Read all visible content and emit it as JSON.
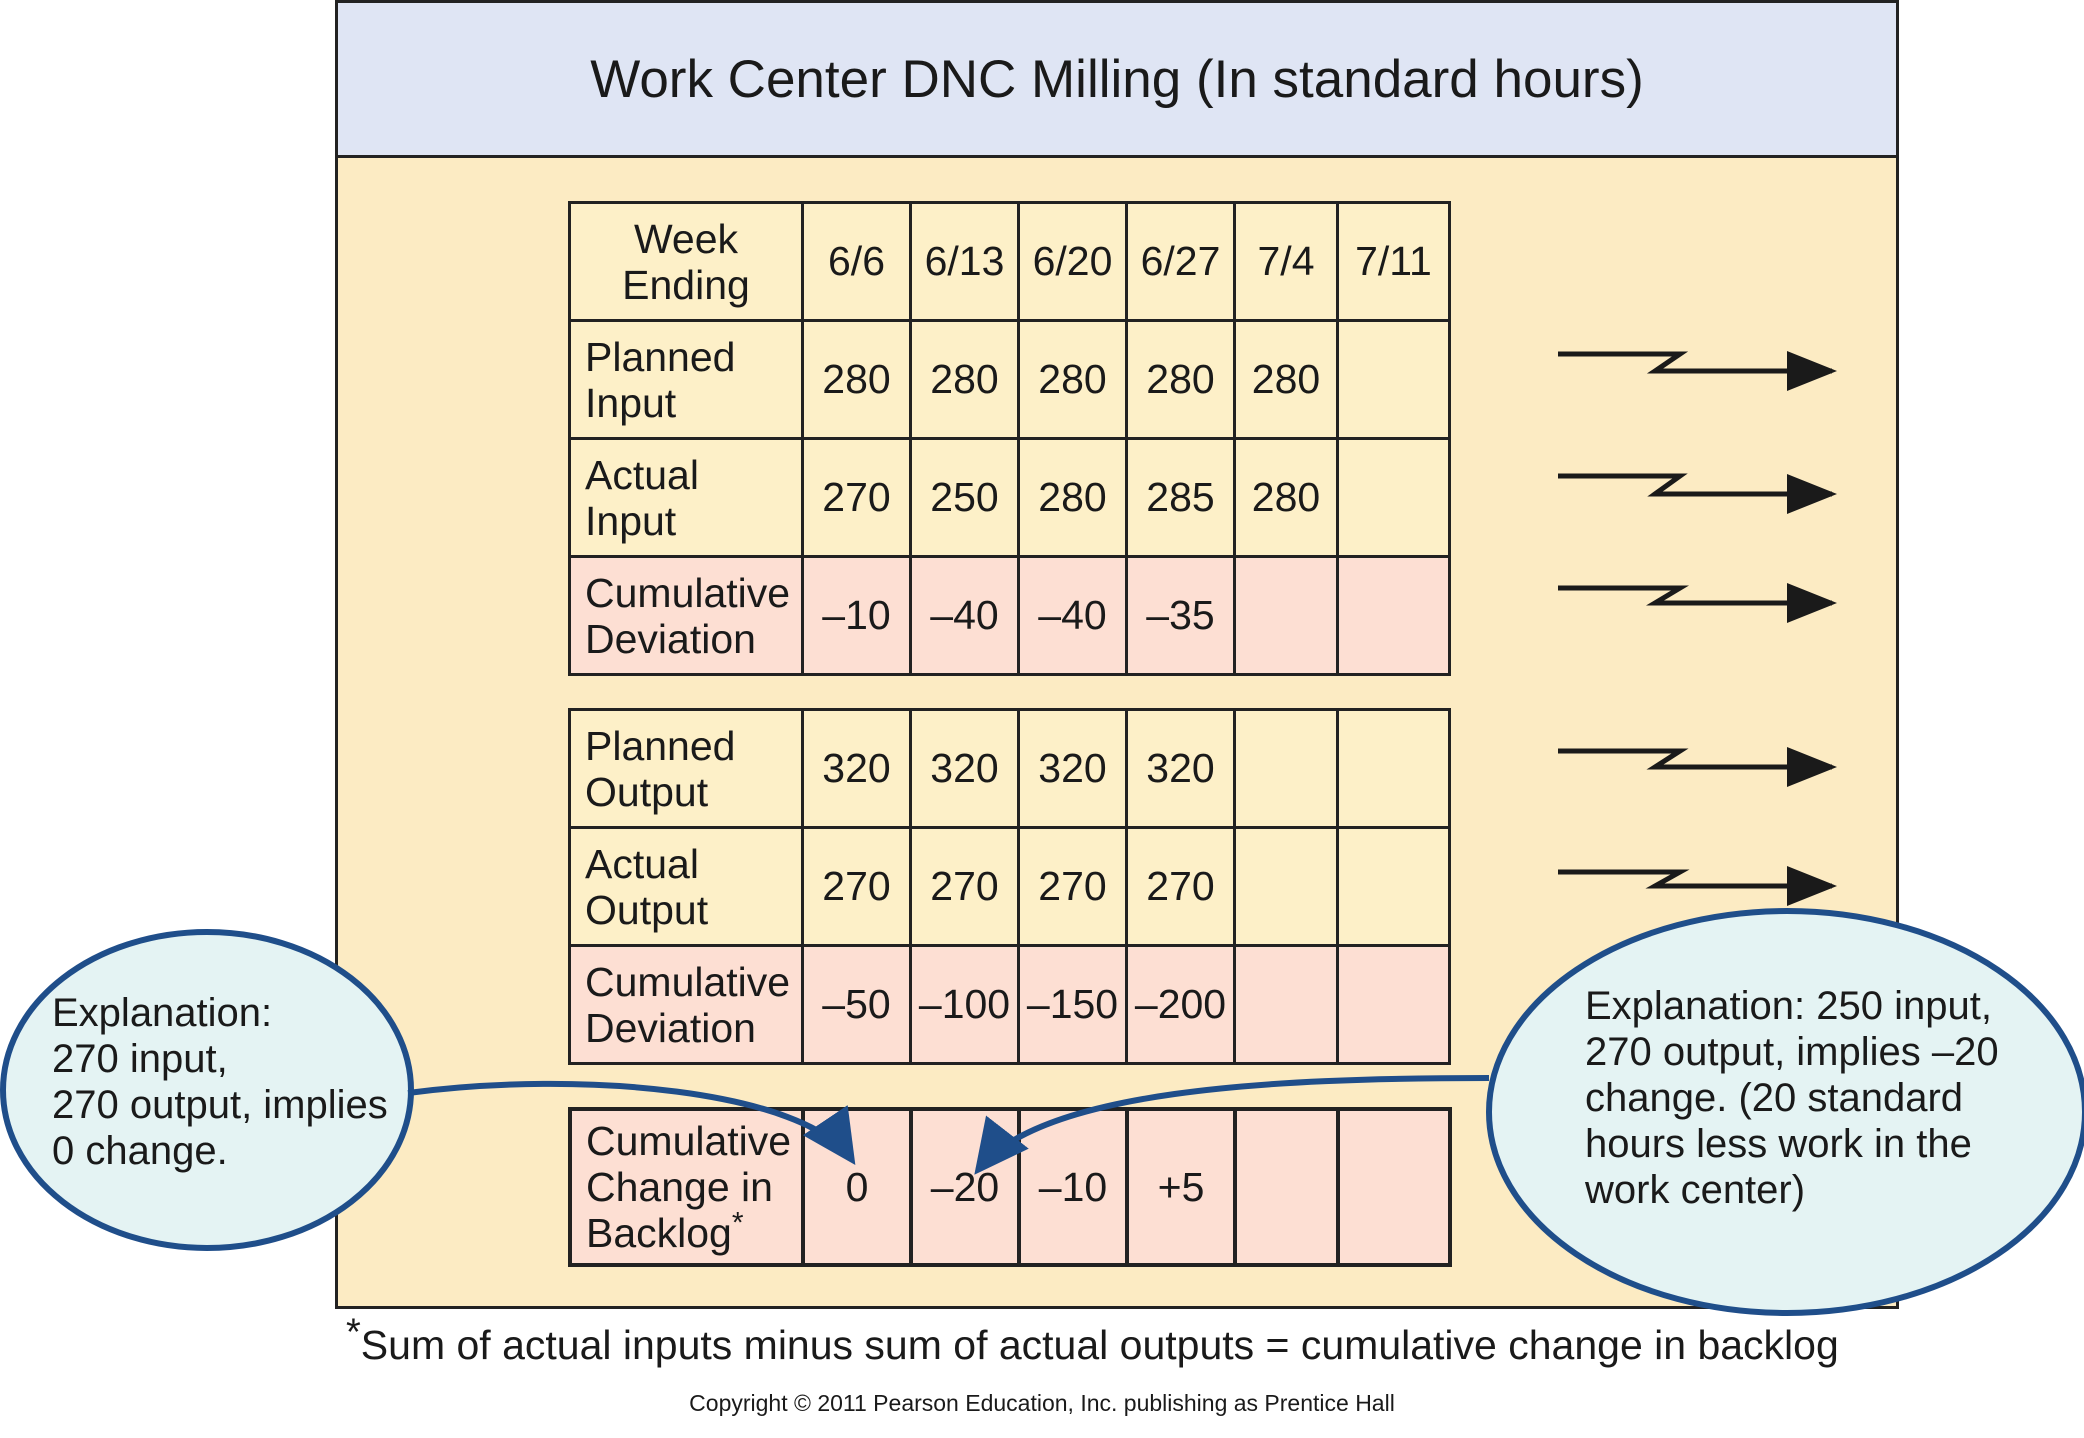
{
  "title": "Work Center DNC Milling (In standard hours)",
  "table": {
    "week_label": "Week Ending",
    "weeks": [
      "6/6",
      "6/13",
      "6/20",
      "6/27",
      "7/4",
      "7/11"
    ],
    "input_rows": [
      {
        "label": "Planned Input",
        "values": [
          "280",
          "280",
          "280",
          "280",
          "280",
          ""
        ]
      },
      {
        "label": "Actual Input",
        "values": [
          "270",
          "250",
          "280",
          "285",
          "280",
          ""
        ]
      },
      {
        "label": "Cumulative Deviation",
        "values": [
          "–10",
          "–40",
          "–40",
          "–35",
          "",
          ""
        ]
      }
    ],
    "output_rows": [
      {
        "label": "Planned Output",
        "values": [
          "320",
          "320",
          "320",
          "320",
          "",
          ""
        ]
      },
      {
        "label": "Actual Output",
        "values": [
          "270",
          "270",
          "270",
          "270",
          "",
          ""
        ]
      },
      {
        "label": "Cumulative Deviation",
        "values": [
          "–50",
          "–100",
          "–150",
          "–200",
          "",
          ""
        ]
      }
    ],
    "backlog_row": {
      "label": "Cumulative Change in Backlog",
      "label_mark": "*",
      "values": [
        "0",
        "–20",
        "–10",
        "+5",
        "",
        ""
      ]
    }
  },
  "callouts": {
    "left": "Explanation:\n270 input,\n270 output, implies\n0 change.",
    "right": "Explanation: 250 input,\n270 output, implies –20\nchange. (20 standard\nhours less work in the\nwork center)"
  },
  "footnote": {
    "mark": "*",
    "text": "Sum of actual inputs minus sum of actual outputs = cumulative change in backlog"
  },
  "copyright": "Copyright © 2011 Pearson Education, Inc. publishing as Prentice Hall",
  "colors": {
    "panel": "#fcebc3",
    "header": "#dfe5f4",
    "deviation_row": "#fddfd3",
    "callout_fill": "#e4f3f3",
    "callout_border": "#1f4e8a"
  }
}
